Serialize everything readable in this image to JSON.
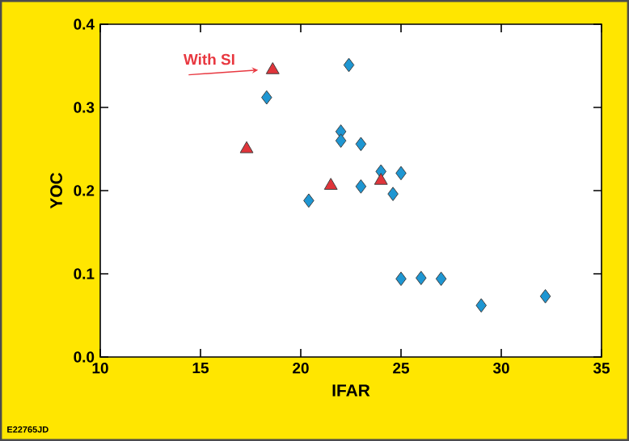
{
  "chart_data": {
    "type": "scatter",
    "xlabel": "IFAR",
    "ylabel": "YOC",
    "xlim": [
      10,
      35
    ],
    "ylim": [
      0,
      0.4
    ],
    "xticks": [
      10,
      15,
      20,
      25,
      30,
      35
    ],
    "yticks": [
      {
        "value": 0,
        "label": "0.0"
      },
      {
        "value": 0.1,
        "label": "0.1"
      },
      {
        "value": 0.2,
        "label": "0.2"
      },
      {
        "value": 0.3,
        "label": "0.3"
      },
      {
        "value": 0.4,
        "label": "0.4"
      }
    ],
    "grid": false,
    "series": [
      {
        "color": "#1e96d2",
        "marker": "diamond",
        "x": [
          18.3,
          22.4,
          22.0,
          22.0,
          23.0,
          24.0,
          25.0,
          23.0,
          24.6,
          20.4,
          25.0,
          26.0,
          27.0,
          29.0,
          32.2
        ],
        "values": [
          0.312,
          0.351,
          0.271,
          0.26,
          0.256,
          0.223,
          0.221,
          0.205,
          0.196,
          0.188,
          0.094,
          0.095,
          0.094,
          0.062,
          0.073
        ]
      },
      {
        "color": "#e0343a",
        "marker": "triangle",
        "x": [
          18.6,
          17.3,
          21.5,
          24.0
        ],
        "values": [
          0.345,
          0.25,
          0.206,
          0.212
        ]
      }
    ],
    "annotations": [
      {
        "text": "With SI",
        "x": 18.6,
        "y": 0.345
      },
      "E22765JD"
    ]
  }
}
